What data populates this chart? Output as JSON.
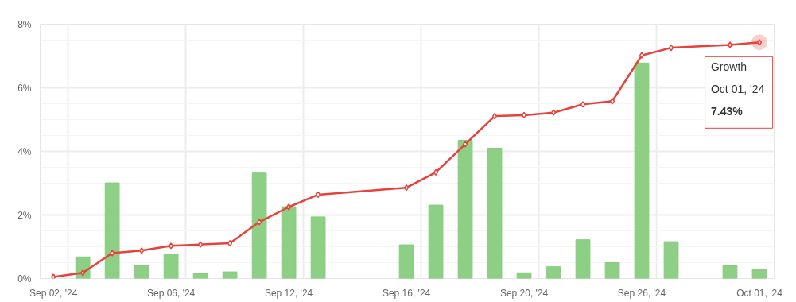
{
  "chart_data": {
    "type": "line",
    "categories": [
      "Sep 02, '24",
      null,
      null,
      null,
      "Sep 06, '24",
      null,
      null,
      null,
      "Sep 12, '24",
      null,
      null,
      null,
      "Sep 16, '24",
      null,
      null,
      null,
      "Sep 20, '24",
      null,
      null,
      null,
      "Sep 26, '24",
      null,
      null,
      null,
      "Oct 01, '24"
    ],
    "series": [
      {
        "type": "bar",
        "color": "#86cc7e",
        "values": [
          null,
          0.68,
          3.01,
          0.4,
          0.77,
          0.15,
          0.21,
          3.32,
          2.26,
          1.94,
          null,
          null,
          1.06,
          2.31,
          4.35,
          4.1,
          0.18,
          0.37,
          1.22,
          0.5,
          6.78,
          1.16,
          null,
          0.4,
          0.3
        ]
      },
      {
        "color": "#e8413c",
        "values": [
          0.05,
          0.18,
          0.8,
          0.88,
          1.03,
          1.07,
          1.11,
          1.78,
          2.25,
          2.64,
          null,
          null,
          2.86,
          3.34,
          4.23,
          5.11,
          5.14,
          5.22,
          5.48,
          5.58,
          7.02,
          7.26,
          null,
          7.35,
          7.43
        ]
      }
    ],
    "ylim": [
      0,
      8
    ],
    "yticks": [
      {
        "value": 0,
        "label": "0%"
      },
      {
        "value": 2,
        "label": "2%"
      },
      {
        "value": 4,
        "label": "4%"
      },
      {
        "value": 6,
        "label": "6%"
      },
      {
        "value": 8,
        "label": "8%"
      }
    ],
    "grid": true,
    "marker": "diamond",
    "line_style": "solid",
    "annotations": [
      {
        "text": "Growth\nOct 01, '24\n7.43%",
        "x": "Oct 01, '24",
        "y": 7.43
      }
    ]
  }
}
